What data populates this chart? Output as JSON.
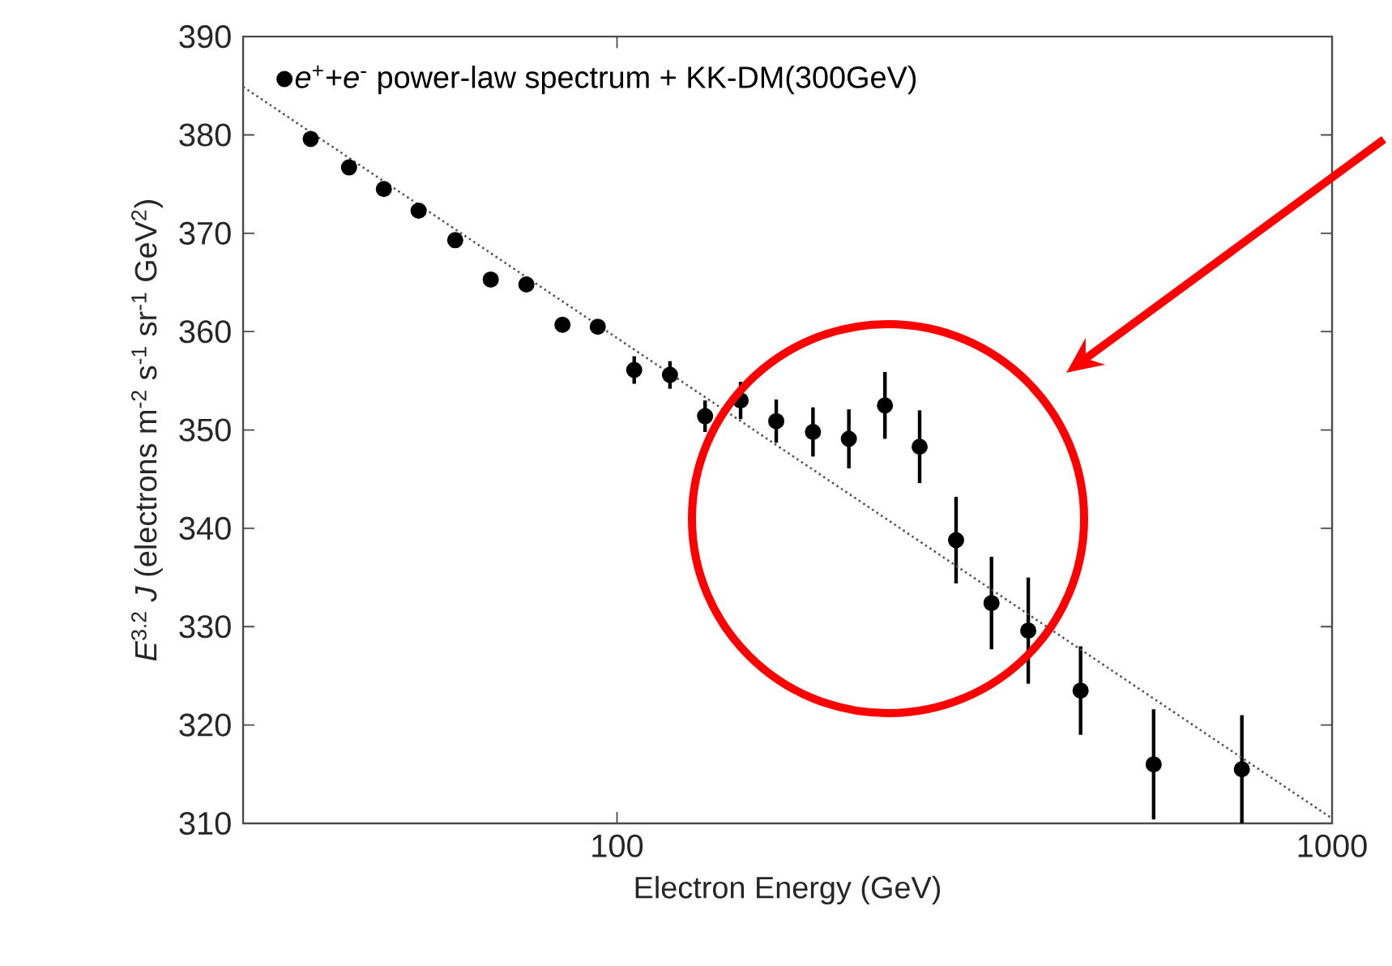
{
  "chart_data": {
    "type": "scatter",
    "xlabel": "Electron Energy (GeV)",
    "ylabel": "*E*$^{3.2}$ *J* (electrons m$^{-2}$ s$^{-1}$ sr$^{-1}$ GeV$^{2}$)",
    "x": [
      37.3,
      42.2,
      47.2,
      52.8,
      59.4,
      66.6,
      74.7,
      83.9,
      94,
      105.7,
      118.6,
      132.8,
      148.9,
      167,
      188,
      211,
      237,
      265,
      298,
      334,
      376,
      445,
      563,
      748
    ],
    "series": [
      {
        "name": "*e*$^{+}$+*e*$^{-}$ power-law spectrum + KK-DM(300GeV)",
        "color": "#000000",
        "marker": "circle",
        "values": [
          379.6,
          376.7,
          374.5,
          372.3,
          369.3,
          365.3,
          364.8,
          360.7,
          360.5,
          356.1,
          355.6,
          351.4,
          353.0,
          350.9,
          349.8,
          349.1,
          352.5,
          348.3,
          338.8,
          332.4,
          329.6,
          323.5,
          316.0,
          315.5
        ],
        "errors": [
          null,
          null,
          null,
          null,
          null,
          null,
          null,
          null,
          null,
          1.4,
          1.4,
          1.6,
          1.9,
          2.2,
          2.5,
          3.0,
          3.4,
          3.7,
          4.4,
          4.7,
          5.4,
          4.5,
          5.6,
          5.5
        ]
      },
      {
        "type": "line",
        "color": "#555555",
        "line_style": "dotted",
        "marker": "none",
        "x": [
          30,
          1000
        ],
        "values": [
          384.9,
          310.5
        ]
      }
    ],
    "xlim": [
      30,
      1000
    ],
    "ylim": [
      310,
      390
    ],
    "xticks": [
      100,
      1000
    ],
    "yticks": [
      310,
      320,
      330,
      340,
      350,
      360,
      370,
      380,
      390
    ],
    "log": "x",
    "legend": "top left",
    "grid": false
  }
}
